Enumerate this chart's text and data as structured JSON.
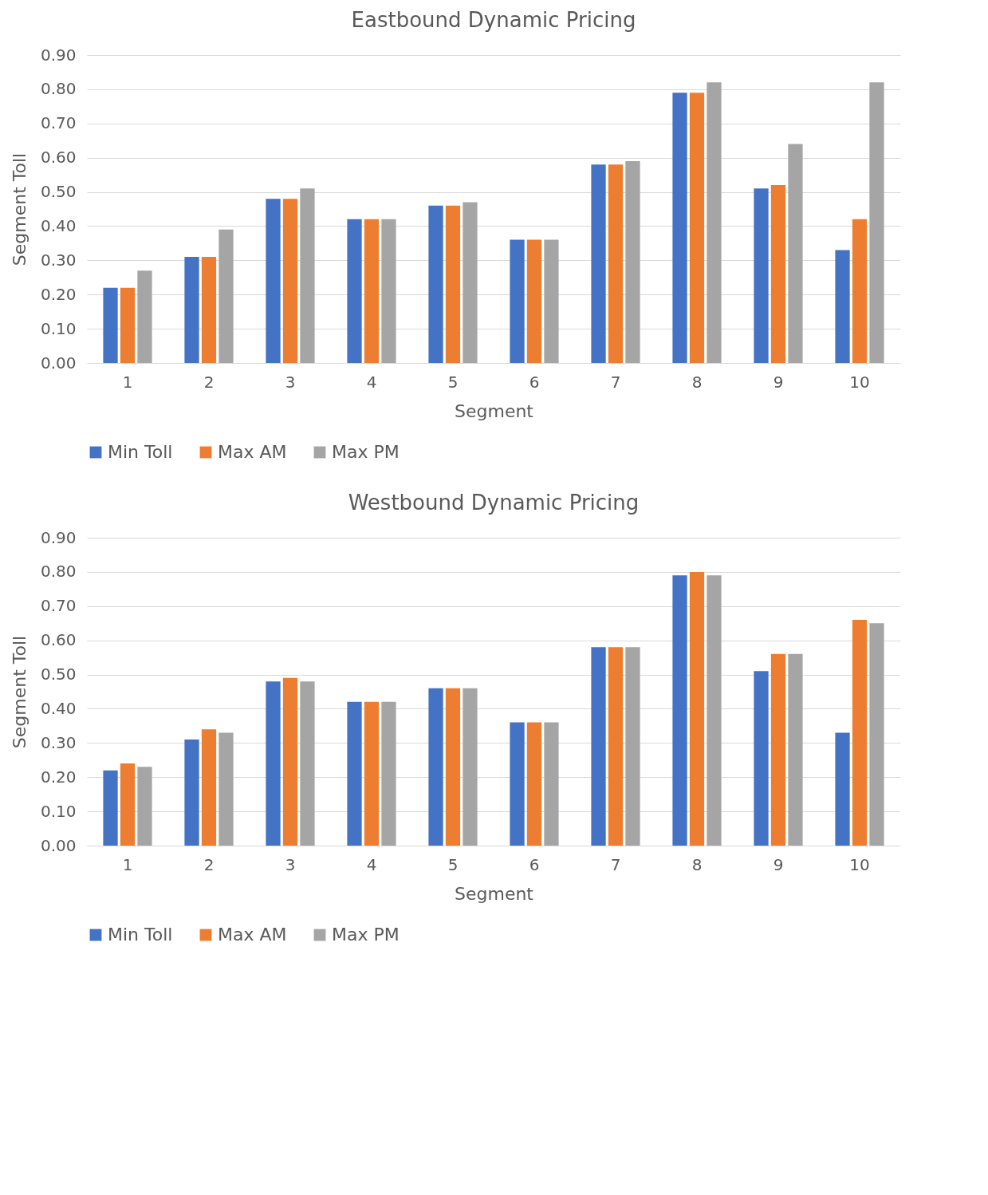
{
  "chart_data": [
    {
      "type": "bar",
      "title": "Eastbound Dynamic Pricing",
      "xlabel": "Segment",
      "ylabel": "Segment Toll",
      "categories": [
        "1",
        "2",
        "3",
        "4",
        "5",
        "6",
        "7",
        "8",
        "9",
        "10"
      ],
      "series": [
        {
          "name": "Min Toll",
          "color": "#4472c4",
          "values": [
            0.22,
            0.31,
            0.48,
            0.42,
            0.46,
            0.36,
            0.58,
            0.79,
            0.51,
            0.33
          ]
        },
        {
          "name": "Max AM",
          "color": "#ed7d31",
          "values": [
            0.22,
            0.31,
            0.48,
            0.42,
            0.46,
            0.36,
            0.58,
            0.79,
            0.52,
            0.42
          ]
        },
        {
          "name": "Max PM",
          "color": "#a5a5a5",
          "values": [
            0.27,
            0.39,
            0.51,
            0.42,
            0.47,
            0.36,
            0.59,
            0.82,
            0.64,
            0.82
          ]
        }
      ],
      "ylim": [
        0,
        0.9
      ],
      "yticks": [
        {
          "value": 0,
          "label": "0.00"
        },
        {
          "value": 0.1,
          "label": "0.10"
        },
        {
          "value": 0.2,
          "label": "0.20"
        },
        {
          "value": 0.3,
          "label": "0.30"
        },
        {
          "value": 0.4,
          "label": "0.40"
        },
        {
          "value": 0.5,
          "label": "0.50"
        },
        {
          "value": 0.6,
          "label": "0.60"
        },
        {
          "value": 0.7,
          "label": "0.70"
        },
        {
          "value": 0.8,
          "label": "0.80"
        },
        {
          "value": 0.9,
          "label": "0.90"
        }
      ],
      "grid": "y",
      "legend": "bottom"
    },
    {
      "type": "bar",
      "title": "Westbound Dynamic Pricing",
      "xlabel": "Segment",
      "ylabel": "Segment Toll",
      "categories": [
        "1",
        "2",
        "3",
        "4",
        "5",
        "6",
        "7",
        "8",
        "9",
        "10"
      ],
      "series": [
        {
          "name": "Min Toll",
          "color": "#4472c4",
          "values": [
            0.22,
            0.31,
            0.48,
            0.42,
            0.46,
            0.36,
            0.58,
            0.79,
            0.51,
            0.33
          ]
        },
        {
          "name": "Max AM",
          "color": "#ed7d31",
          "values": [
            0.24,
            0.34,
            0.49,
            0.42,
            0.46,
            0.36,
            0.58,
            0.8,
            0.56,
            0.66
          ]
        },
        {
          "name": "Max PM",
          "color": "#a5a5a5",
          "values": [
            0.23,
            0.33,
            0.48,
            0.42,
            0.46,
            0.36,
            0.58,
            0.79,
            0.56,
            0.65
          ]
        }
      ],
      "ylim": [
        0,
        0.9
      ],
      "yticks": [
        {
          "value": 0,
          "label": "0.00"
        },
        {
          "value": 0.1,
          "label": "0.10"
        },
        {
          "value": 0.2,
          "label": "0.20"
        },
        {
          "value": 0.3,
          "label": "0.30"
        },
        {
          "value": 0.4,
          "label": "0.40"
        },
        {
          "value": 0.5,
          "label": "0.50"
        },
        {
          "value": 0.6,
          "label": "0.60"
        },
        {
          "value": 0.7,
          "label": "0.70"
        },
        {
          "value": 0.8,
          "label": "0.80"
        },
        {
          "value": 0.9,
          "label": "0.90"
        }
      ],
      "grid": "y",
      "legend": "bottom"
    }
  ]
}
